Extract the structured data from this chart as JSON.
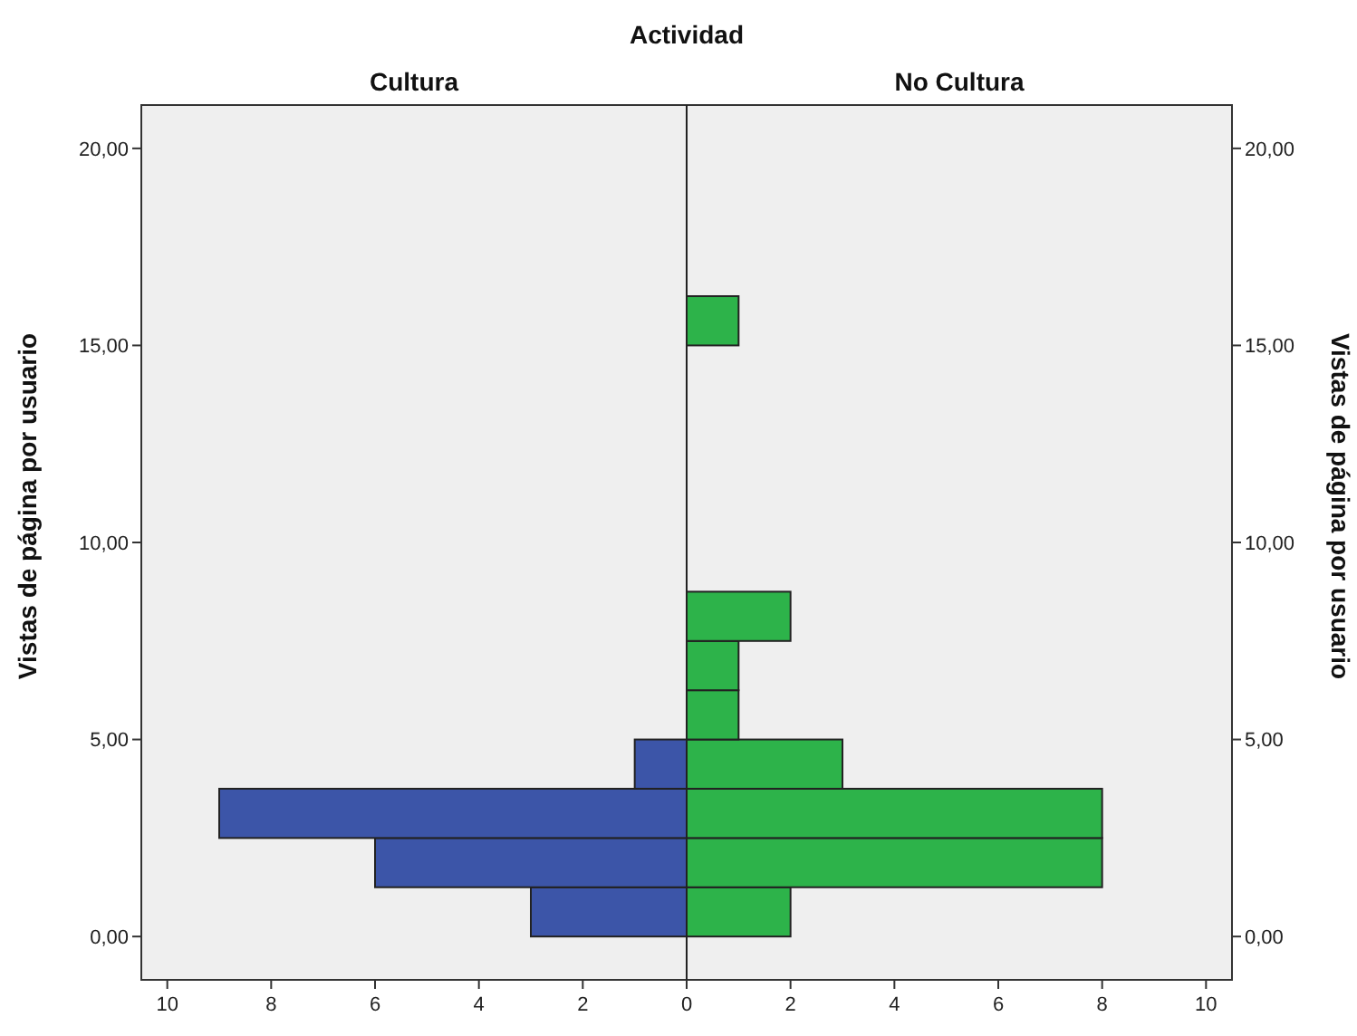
{
  "chart_data": {
    "type": "histogram",
    "title": "Actividad",
    "annotations": [
      "Cultura",
      "No Cultura"
    ],
    "orientation": "horizontal",
    "ylabel": "Vistas de página por usuario",
    "y2label": "Vistas de página por usuario",
    "xlim": [
      -10.5,
      10.5
    ],
    "xticks": [
      {
        "value": -10,
        "label": "10"
      },
      {
        "value": -8,
        "label": "8"
      },
      {
        "value": -6,
        "label": "6"
      },
      {
        "value": -4,
        "label": "4"
      },
      {
        "value": -2,
        "label": "2"
      },
      0,
      2,
      4,
      6,
      8,
      10
    ],
    "ylim": [
      -1.1,
      21.1
    ],
    "yticks": [
      {
        "value": 0,
        "label": "0,00"
      },
      {
        "value": 5,
        "label": "5,00"
      },
      {
        "value": 10,
        "label": "10,00"
      },
      {
        "value": 15,
        "label": "15,00"
      },
      {
        "value": 20,
        "label": "20,00"
      }
    ],
    "y2lim": [
      -1.1,
      21.1
    ],
    "y2ticks": [
      {
        "value": 0,
        "label": "0,00"
      },
      {
        "value": 5,
        "label": "5,00"
      },
      {
        "value": 10,
        "label": "10,00"
      },
      {
        "value": 15,
        "label": "15,00"
      },
      {
        "value": 20,
        "label": "20,00"
      }
    ],
    "ref_lines": [
      {
        "axis": "x",
        "value": 0,
        "color": "#222222"
      }
    ],
    "bins": [
      0,
      1.25,
      2.5,
      3.75,
      5,
      6.25,
      7.5,
      8.75,
      10,
      11.25,
      12.5,
      13.75,
      15,
      16.25
    ],
    "series": [
      {
        "color": "#3c55a8",
        "values": [
          -3,
          -6,
          -9,
          -1,
          0,
          0,
          0,
          0,
          0,
          0,
          0,
          0,
          0
        ]
      },
      {
        "color": "#2db34a",
        "values": [
          2,
          8,
          8,
          3,
          1,
          1,
          2,
          0,
          0,
          0,
          0,
          0,
          1
        ]
      }
    ]
  }
}
